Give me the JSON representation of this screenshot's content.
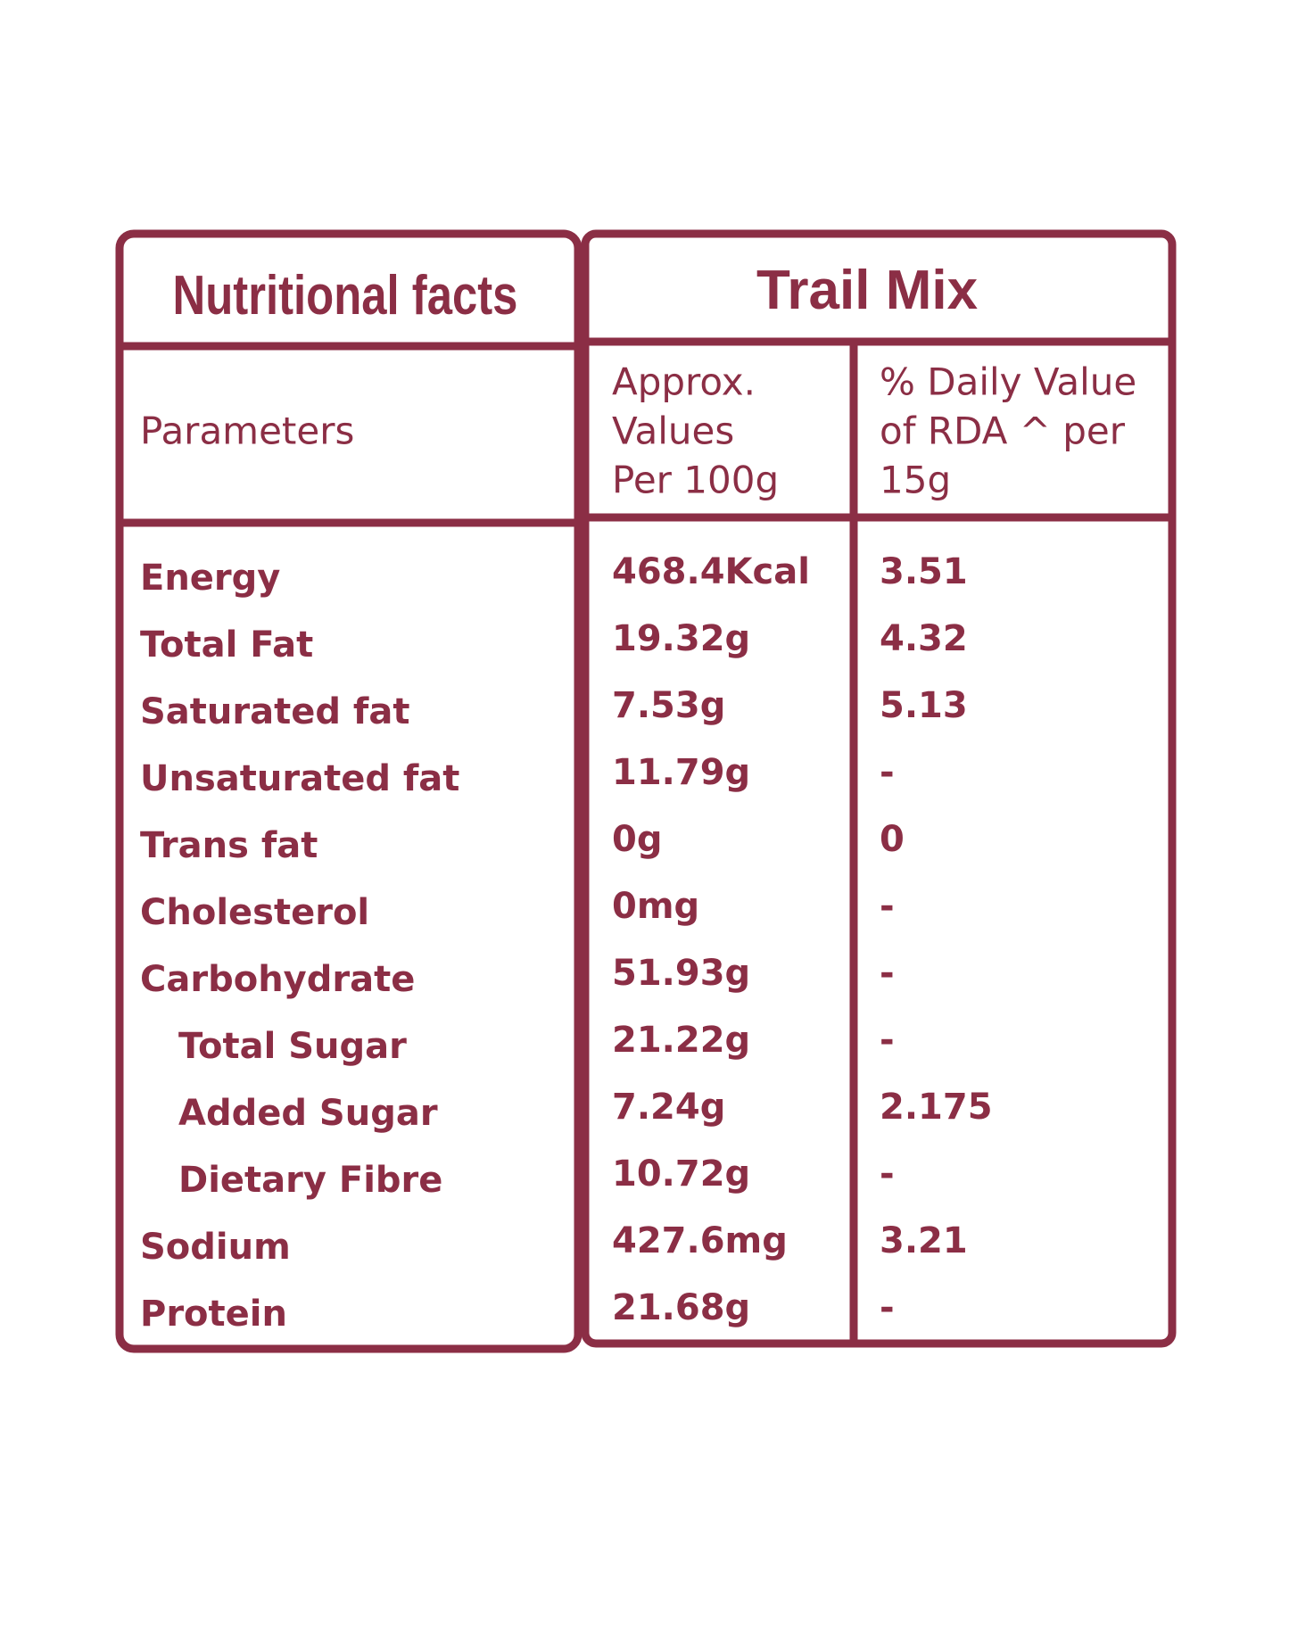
{
  "header": {
    "title": "Nutritional facts",
    "product": "Trail Mix"
  },
  "table": {
    "columns": [
      [
        "Parameters"
      ],
      [
        "Approx.",
        "Values",
        "Per 100g"
      ],
      [
        "% Daily Value",
        "of RDA ^ per",
        "15g"
      ]
    ],
    "rows": [
      {
        "cells": [
          "Energy",
          "468.4Kcal",
          "3.51"
        ]
      },
      {
        "cells": [
          "Total Fat",
          "19.32g",
          "4.32"
        ]
      },
      {
        "cells": [
          "Saturated fat",
          "7.53g",
          "5.13"
        ]
      },
      {
        "cells": [
          "Unsaturated fat",
          "11.79g",
          "-"
        ]
      },
      {
        "cells": [
          "Trans fat",
          "0g",
          "0"
        ]
      },
      {
        "cells": [
          "Cholesterol",
          "0mg",
          "-"
        ]
      },
      {
        "cells": [
          "Carbohydrate",
          "51.93g",
          "-"
        ]
      },
      {
        "cells": [
          "Total Sugar",
          "21.22g",
          "-"
        ],
        "indent": true
      },
      {
        "cells": [
          "Added Sugar",
          "7.24g",
          "2.175"
        ],
        "indent": true
      },
      {
        "cells": [
          "Dietary Fibre",
          "10.72g",
          "-"
        ],
        "indent": true
      },
      {
        "cells": [
          "Sodium",
          "427.6mg",
          "3.21"
        ]
      },
      {
        "cells": [
          "Protein",
          "21.68g",
          "-"
        ]
      }
    ]
  }
}
